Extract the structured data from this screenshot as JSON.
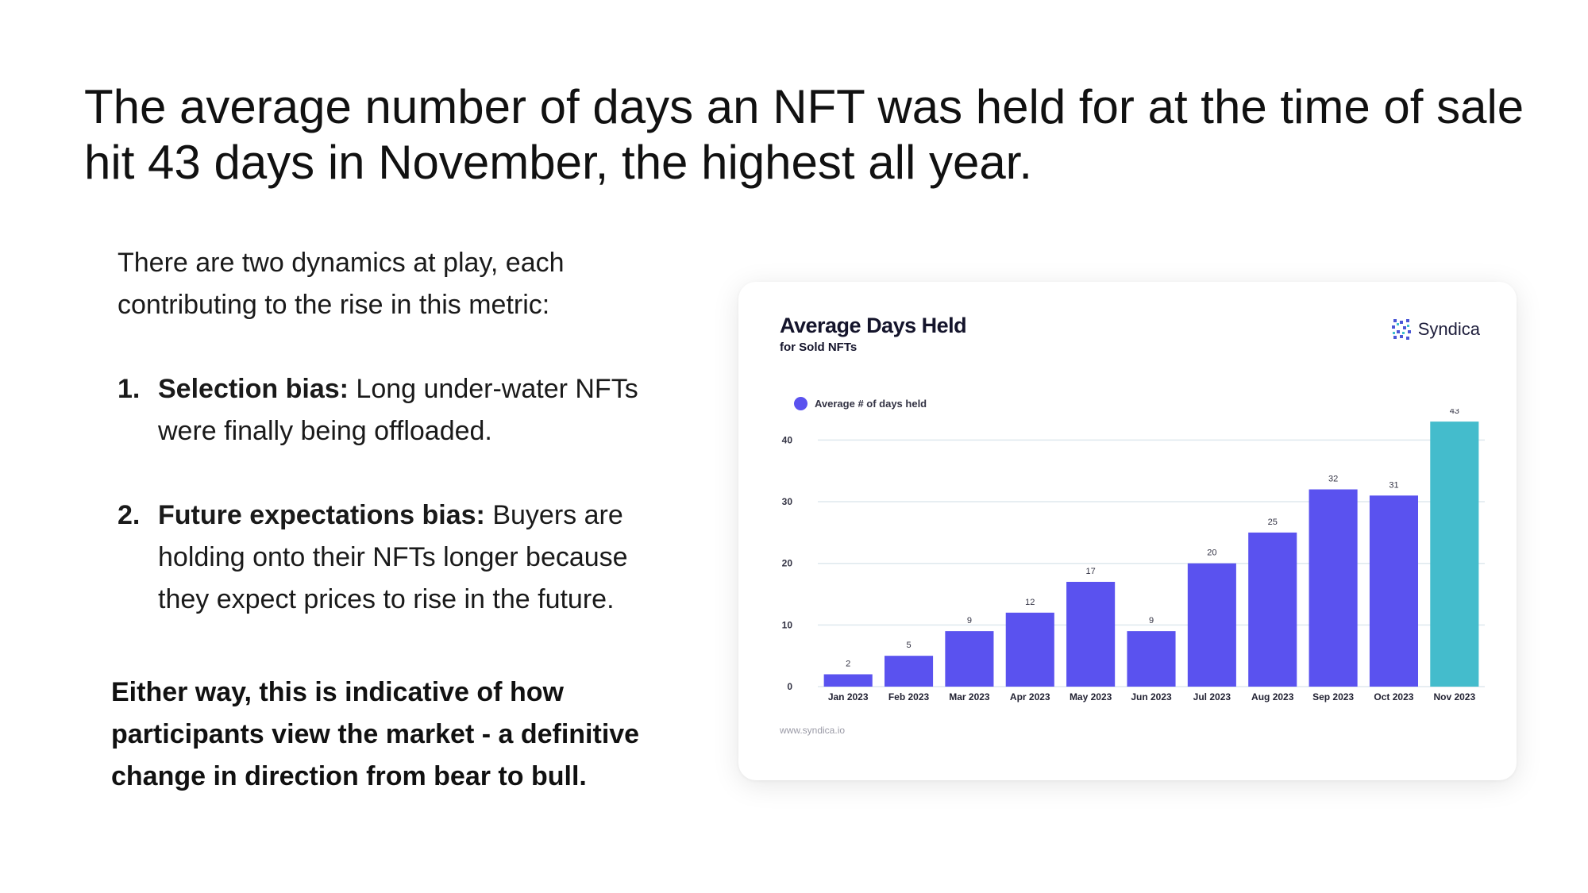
{
  "headline": "The average number of days an NFT was held for at the time of sale hit 43 days in November, the highest all year.",
  "intro": "There are two dynamics at play, each contributing to the rise in this metric:",
  "points": [
    {
      "number": "1.",
      "term": "Selection bias:",
      "text": " Long under-water NFTs were finally being offloaded."
    },
    {
      "number": "2.",
      "term": "Future expectations bias:",
      "text": " Buyers are holding onto their NFTs longer because they expect prices to rise in the future."
    }
  ],
  "conclusion": "Either way, this is indicative of how participants view the market - a definitive change in direction from bear to bull.",
  "card": {
    "brand": "Syndica",
    "brand_icon": "syndica-logo-icon",
    "footer_url": "www.syndica.io"
  },
  "chart_data": {
    "type": "bar",
    "title": "Average Days Held",
    "subtitle": "for Sold NFTs",
    "legend_position": "top-left",
    "grid": true,
    "categories": [
      "Jan 2023",
      "Feb 2023",
      "Mar 2023",
      "Apr 2023",
      "May 2023",
      "Jun 2023",
      "Jul 2023",
      "Aug 2023",
      "Sep 2023",
      "Oct 2023",
      "Nov 2023"
    ],
    "series": [
      {
        "name": "Average # of days held",
        "values": [
          2,
          5,
          9,
          12,
          17,
          9,
          20,
          25,
          32,
          31,
          43
        ]
      }
    ],
    "y_ticks": [
      0,
      10,
      20,
      30,
      40
    ],
    "ylim": [
      0,
      42.5
    ],
    "colors": {
      "bar": "#5a52ef",
      "highlight": "#44bccc",
      "grid": "#dfe9ee"
    },
    "highlight_index": 10
  }
}
